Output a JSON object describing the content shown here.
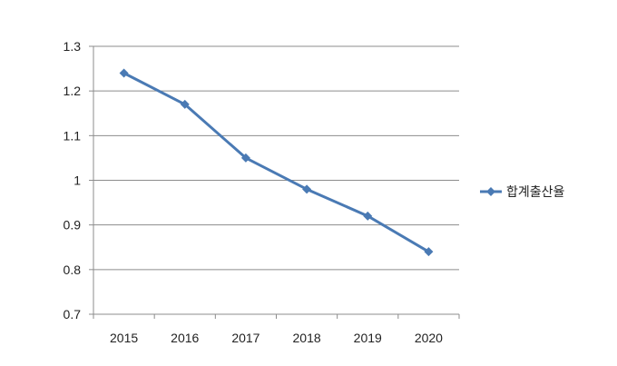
{
  "chart_data": {
    "type": "line",
    "title": "",
    "xlabel": "",
    "ylabel": "",
    "categories": [
      "2015",
      "2016",
      "2017",
      "2018",
      "2019",
      "2020"
    ],
    "series": [
      {
        "name": "합계출산율",
        "values": [
          1.24,
          1.17,
          1.05,
          0.98,
          0.92,
          0.84
        ],
        "color": "#4a7ab4"
      }
    ],
    "ylim": [
      0.7,
      1.3
    ],
    "yticks": [
      0.7,
      0.8,
      0.9,
      1.0,
      1.1,
      1.2,
      1.3
    ],
    "ytick_labels": [
      "0.7",
      "0.8",
      "0.9",
      "1",
      "1.1",
      "1.2",
      "1.3"
    ],
    "grid": true,
    "legend": "right",
    "marker": "diamond",
    "colors": {
      "line": "#4a7ab4",
      "grid": "#8c8c8c",
      "axis": "#8c8c8c",
      "text": "#222222"
    }
  }
}
